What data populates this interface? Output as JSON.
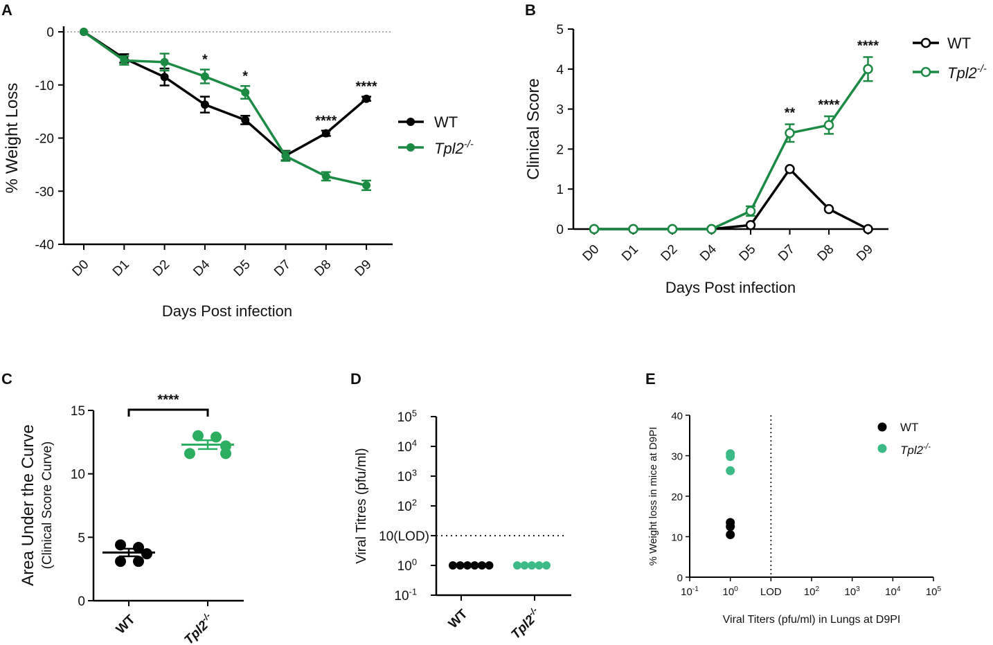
{
  "colors": {
    "wt": "#000000",
    "tpl2_line": "#1b8a43",
    "tpl2_dot": "#2bae5f",
    "tpl2_light": "#3dbb86",
    "axis": "#000000"
  },
  "chart_data": [
    {
      "id": "A",
      "panel_label": "A",
      "type": "line",
      "ylabel": "% Weight Loss",
      "xlabel": "Days Post infection",
      "categories": [
        "D0",
        "D1",
        "D2",
        "D4",
        "D5",
        "D7",
        "D8",
        "D9"
      ],
      "ylim": [
        -40,
        0
      ],
      "yticks": [
        0,
        -10,
        -20,
        -30,
        -40
      ],
      "legend": {
        "position": "right",
        "wt": "WT",
        "tpl2": "Tpl2",
        "tpl2_sup": "-/-"
      },
      "series": [
        {
          "name": "WT",
          "values": [
            0,
            -5,
            -8.5,
            -13.7,
            -16.6,
            -23.3,
            -19.1,
            -12.6
          ],
          "errors": [
            0,
            0.8,
            1.6,
            1.5,
            0.8,
            0.9,
            0.5,
            0.4
          ]
        },
        {
          "name": "Tpl2-/-",
          "values": [
            0,
            -5.4,
            -5.7,
            -8.4,
            -11.4,
            -23.4,
            -27.2,
            -28.9
          ],
          "errors": [
            0,
            0.8,
            1.6,
            1.3,
            1.2,
            0.9,
            0.8,
            0.9
          ]
        }
      ],
      "significance": [
        {
          "index": 3,
          "label": "*"
        },
        {
          "index": 4,
          "label": "*"
        },
        {
          "index": 6,
          "label": "****"
        },
        {
          "index": 7,
          "label": "****"
        }
      ]
    },
    {
      "id": "B",
      "panel_label": "B",
      "type": "line",
      "ylabel": "Clinical Score",
      "xlabel": "Days Post infection",
      "categories": [
        "D0",
        "D1",
        "D2",
        "D4",
        "D5",
        "D7",
        "D8",
        "D9"
      ],
      "ylim": [
        0,
        5
      ],
      "yticks": [
        0,
        1,
        2,
        3,
        4,
        5
      ],
      "legend": {
        "position": "top-right",
        "wt": "WT",
        "tpl2": "Tpl2",
        "tpl2_sup": "-/-"
      },
      "series": [
        {
          "name": "WT",
          "values": [
            0,
            0,
            0,
            0,
            0.1,
            1.5,
            0.5,
            0
          ],
          "errors": [
            0,
            0,
            0,
            0,
            0,
            0,
            0,
            0
          ]
        },
        {
          "name": "Tpl2-/-",
          "values": [
            0,
            0,
            0,
            0,
            0.45,
            2.4,
            2.6,
            4.0
          ],
          "errors": [
            0,
            0,
            0,
            0,
            0.12,
            0.22,
            0.22,
            0.3
          ]
        }
      ],
      "significance": [
        {
          "index": 5,
          "label": "**"
        },
        {
          "index": 6,
          "label": "****"
        },
        {
          "index": 7,
          "label": "****"
        }
      ]
    },
    {
      "id": "C",
      "panel_label": "C",
      "type": "scatter",
      "ylabel": "Area Under the Curve",
      "ylabel2": "(Clinical Score Curve)",
      "categories": [
        "WT",
        "Tpl2"
      ],
      "tpl2_sup": "-/-",
      "ylim": [
        0,
        15
      ],
      "yticks": [
        0,
        5,
        10,
        15
      ],
      "groups": [
        {
          "name": "WT",
          "points": [
            4.4,
            4.2,
            3.7,
            3.1,
            3.1
          ],
          "mean": 3.8,
          "sem": 0.3
        },
        {
          "name": "Tpl2-/-",
          "points": [
            13.0,
            12.9,
            12.2,
            11.6,
            11.6
          ],
          "mean": 12.3,
          "sem": 0.35
        }
      ],
      "significance": "****"
    },
    {
      "id": "D",
      "panel_label": "D",
      "type": "scatter",
      "ylabel": "Viral Titres (pfu/ml)",
      "categories": [
        "WT",
        "Tpl2"
      ],
      "tpl2_sup": "-/-",
      "yscale": "log",
      "ylim_exp": [
        -1,
        5
      ],
      "yticks": [
        {
          "exp": 5,
          "base": "10",
          "sup": "5"
        },
        {
          "exp": 4,
          "base": "10",
          "sup": "4"
        },
        {
          "exp": 3,
          "base": "10",
          "sup": "3"
        },
        {
          "exp": 2,
          "base": "10",
          "sup": "2"
        },
        {
          "exp": 1,
          "base": "10(LOD)",
          "sup": ""
        },
        {
          "exp": 0,
          "base": "10",
          "sup": "0"
        },
        {
          "exp": -1,
          "base": "10",
          "sup": "-1"
        }
      ],
      "lod_exp": 1,
      "groups": [
        {
          "name": "WT",
          "value": 1,
          "n": 6
        },
        {
          "name": "Tpl2-/-",
          "value": 1,
          "n": 5
        }
      ]
    },
    {
      "id": "E",
      "panel_label": "E",
      "type": "scatter",
      "ylabel": "% Weight loss in mice at D9PI",
      "xlabel": "Viral Titers (pfu/ml)  in Lungs at D9PI",
      "xscale": "log",
      "xlim_exp": [
        -1,
        5
      ],
      "xticks": [
        {
          "exp": -1,
          "base": "10",
          "sup": "-1"
        },
        {
          "exp": 0,
          "base": "10",
          "sup": "0"
        },
        {
          "exp": 1,
          "base": "LOD",
          "sup": ""
        },
        {
          "exp": 2,
          "base": "10",
          "sup": "2"
        },
        {
          "exp": 3,
          "base": "10",
          "sup": "3"
        },
        {
          "exp": 4,
          "base": "10",
          "sup": "4"
        },
        {
          "exp": 5,
          "base": "10",
          "sup": "5"
        }
      ],
      "ylim": [
        0,
        40
      ],
      "yticks": [
        0,
        10,
        20,
        30,
        40
      ],
      "lod_exp": 1,
      "legend": {
        "position": "top-right",
        "wt": "WT",
        "tpl2": "Tpl2",
        "tpl2_sup": "-/-"
      },
      "series": [
        {
          "name": "WT",
          "x_exp": 0,
          "y": [
            13.5,
            12.5,
            10.5
          ]
        },
        {
          "name": "Tpl2-/-",
          "x_exp": 0,
          "y": [
            30.5,
            29.8,
            26.3
          ]
        }
      ]
    }
  ]
}
